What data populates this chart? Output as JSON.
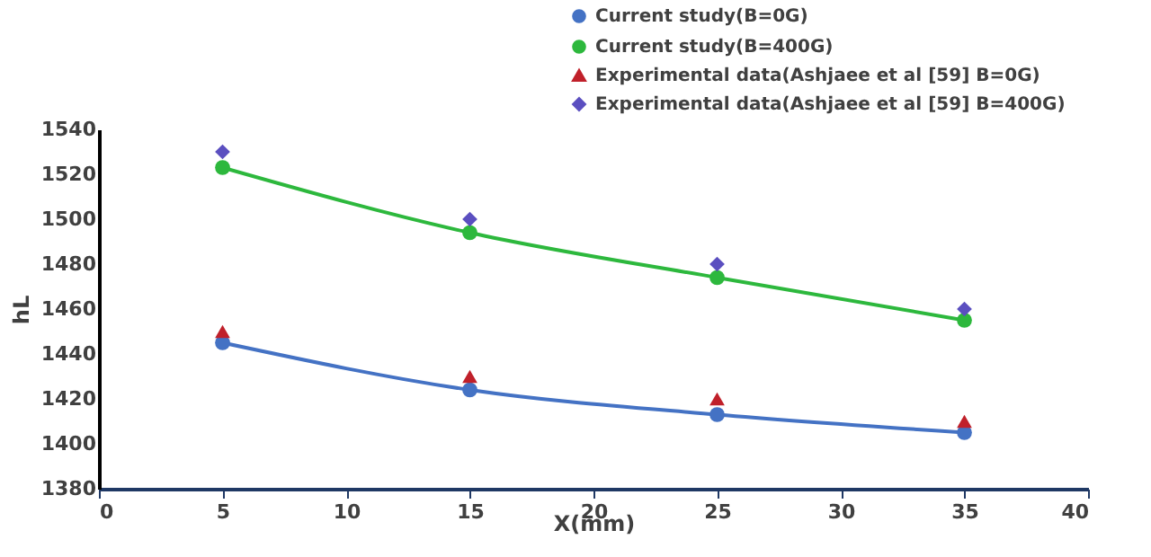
{
  "chart_data": {
    "type": "line",
    "xlabel": "X(mm)",
    "ylabel": "hL",
    "xlim": [
      0,
      40
    ],
    "xticks": [
      0,
      5,
      10,
      15,
      20,
      25,
      30,
      35,
      40
    ],
    "ylim": [
      1380,
      1540
    ],
    "yticks": [
      1380,
      1400,
      1420,
      1440,
      1460,
      1480,
      1500,
      1520,
      1540
    ],
    "grid": false,
    "legend": "top right",
    "series": [
      {
        "name": "Current study(B=0G)",
        "type": "line",
        "marker": "circle",
        "color": "#4472c4",
        "x": [
          5,
          15,
          25,
          35
        ],
        "values": [
          1445,
          1424,
          1413,
          1405
        ]
      },
      {
        "name": "Current study(B=400G)",
        "type": "line",
        "marker": "circle",
        "color": "#2db83d",
        "x": [
          5,
          15,
          25,
          35
        ],
        "values": [
          1523,
          1494,
          1474,
          1455
        ]
      },
      {
        "name": "Experimental data(Ashjaee et al [59] B=0G)",
        "type": "scatter",
        "marker": "triangle",
        "color": "#c0202a",
        "x": [
          5,
          15,
          25,
          35
        ],
        "values": [
          1450,
          1430,
          1420,
          1410
        ]
      },
      {
        "name": "Experimental data(Ashjaee et al [59] B=400G)",
        "type": "scatter",
        "marker": "diamond",
        "color": "#5b4fc0",
        "x": [
          5,
          15,
          25,
          35
        ],
        "values": [
          1530,
          1500,
          1480,
          1460
        ]
      }
    ]
  }
}
